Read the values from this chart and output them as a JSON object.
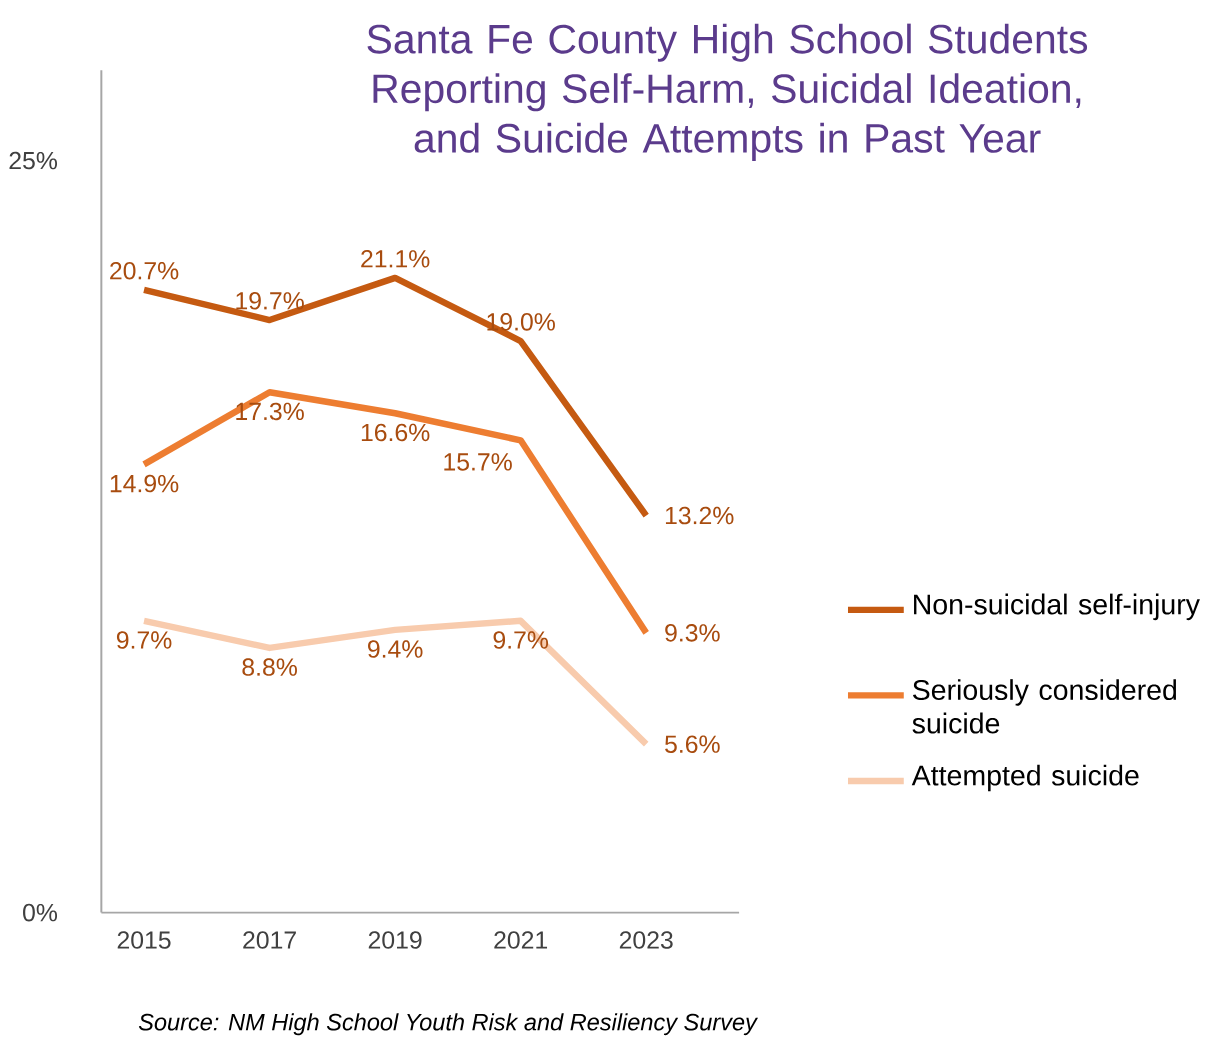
{
  "chart_data": {
    "type": "line",
    "title": "Santa Fe County High School Students Reporting Self-Harm, Suicidal Ideation, and Suicide Attempts in Past Year",
    "categories": [
      "2015",
      "2017",
      "2019",
      "2021",
      "2023"
    ],
    "series": [
      {
        "name": "Non-suicidal self-injury",
        "color": "#c55a11",
        "values": [
          20.7,
          19.7,
          21.1,
          19.0,
          13.2
        ],
        "value_labels": [
          "20.7%",
          "19.7%",
          "21.1%",
          "19.0%",
          "13.2%"
        ]
      },
      {
        "name": "Seriously considered suicide",
        "color": "#ed7d31",
        "values": [
          14.9,
          17.3,
          16.6,
          15.7,
          9.3
        ],
        "value_labels": [
          "14.9%",
          "17.3%",
          "16.6%",
          "15.7%",
          "9.3%"
        ]
      },
      {
        "name": "Attempted suicide",
        "color": "#f8cbad",
        "values": [
          9.7,
          8.8,
          9.4,
          9.7,
          5.6
        ],
        "value_labels": [
          "9.7%",
          "8.8%",
          "9.4%",
          "9.7%",
          "5.6%"
        ]
      }
    ],
    "ylim": [
      0,
      28
    ],
    "yticks": [
      {
        "value": 0,
        "label": "0%"
      },
      {
        "value": 25,
        "label": "25%"
      }
    ],
    "legend": "right",
    "marker": "none",
    "line_style": "solid",
    "grid": false,
    "annotations": [
      "Source: NM High School Youth Risk and Resiliency Survey"
    ]
  }
}
